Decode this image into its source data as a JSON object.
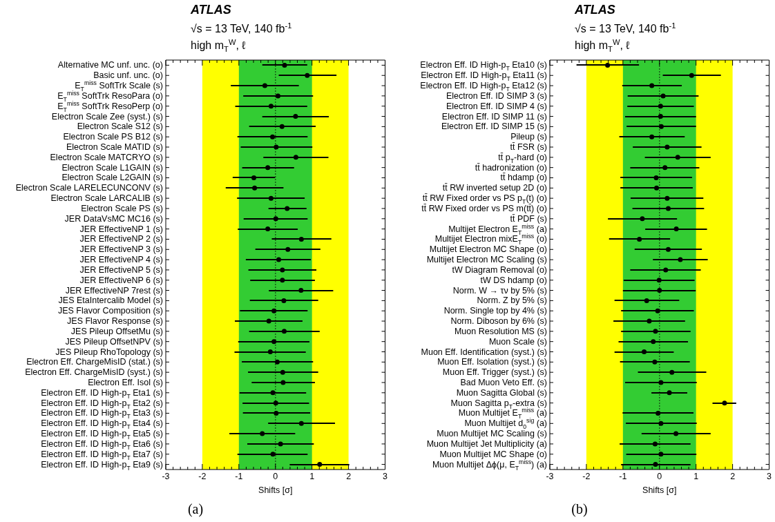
{
  "chart_data": [
    {
      "type": "scatter",
      "orientation": "horizontal",
      "title": "ATLAS",
      "subtitle": "√s = 13 TeV, 140 fb$^{-1}$\nhigh m$_{T}$$^{W}$, ℓ",
      "xlabel": "Shifts [σ]",
      "annotations": [
        "(a)"
      ],
      "categories": [
        "Alternative MC unf. unc. (o)",
        "Basic unf. unc. (o)",
        "E$_{T}$$^{miss}$ SoftTrk Scale (s)",
        "E$_{T}$$^{miss}$ SoftTrk ResoPara (o)",
        "E$_{T}$$^{miss}$ SoftTrk ResoPerp (o)",
        "Electron Scale Zee (syst.)  (s)",
        "Electron Scale S12 (s)",
        "Electron Scale PS B12 (s)",
        "Electron Scale MATID (s)",
        "Electron Scale MATCRYO (s)",
        "Electron Scale L1GAIN (s)",
        "Electron Scale L2GAIN (s)",
        "Electron Scale LARELECUNCONV (s)",
        "Electron Scale LARCALIB (s)",
        "Electron Scale PS (s)",
        "JER DataVsMC MC16 (s)",
        "JER EffectiveNP 1 (s)",
        "JER EffectiveNP 2 (s)",
        "JER EffectiveNP 3 (s)",
        "JER EffectiveNP 4 (s)",
        "JER EffectiveNP 5 (s)",
        "JER EffectiveNP 6 (s)",
        "JER EffectiveNP 7rest (s)",
        "JES EtaIntercalib Model (s)",
        "JES Flavor Composition (s)",
        "JES Flavor Response (s)",
        "JES Pileup OffsetMu (s)",
        "JES Pileup OffsetNPV (s)",
        "JES Pileup RhoTopology (s)",
        "Electron Eff. ChargeMisID (stat.) (s)",
        "Electron Eff. ChargeMisID (syst.) (s)",
        "Electron Eff. Isol (s)",
        "Electron Eff. ID High-p$_{T}$ Eta1 (s)",
        "Electron Eff. ID High-p$_{T}$ Eta2 (s)",
        "Electron Eff. ID High-p$_{T}$ Eta3 (s)",
        "Electron Eff. ID High-p$_{T}$ Eta4 (s)",
        "Electron Eff. ID High-p$_{T}$ Eta5 (s)",
        "Electron Eff. ID High-p$_{T}$ Eta6 (s)",
        "Electron Eff. ID High-p$_{T}$ Eta7 (s)",
        "Electron Eff. ID High-p$_{T}$ Eta9 (s)"
      ],
      "series": [
        {
          "color": "#000000",
          "values": [
            0.25,
            0.87,
            -0.29,
            0.07,
            -0.12,
            0.55,
            0.18,
            -0.08,
            0.02,
            0.56,
            -0.21,
            -0.59,
            -0.57,
            -0.12,
            0.32,
            0.01,
            -0.21,
            0.71,
            0.34,
            0.09,
            0.19,
            0.19,
            0.7,
            0.23,
            -0.04,
            -0.18,
            0.24,
            -0.04,
            -0.14,
            0.05,
            0.2,
            0.21,
            -0.07,
            0.01,
            0.02,
            0.71,
            -0.36,
            0.14,
            -0.07,
            1.21
          ],
          "errors": [
            [
              -0.36,
              0.87
            ],
            [
              0.09,
              1.67
            ],
            [
              -1.22,
              0.64
            ],
            [
              -0.88,
              1.03
            ],
            [
              -1.1,
              0.87
            ],
            [
              -0.36,
              1.46
            ],
            [
              -0.72,
              1.1
            ],
            [
              -1.04,
              0.88
            ],
            [
              -0.95,
              1.01
            ],
            [
              -0.33,
              1.45
            ],
            [
              -0.91,
              0.51
            ],
            [
              -1.17,
              -0.01
            ],
            [
              -1.36,
              0.22
            ],
            [
              -1.05,
              0.8
            ],
            [
              -0.19,
              0.85
            ],
            [
              -0.87,
              0.88
            ],
            [
              -1.03,
              0.61
            ],
            [
              -0.1,
              1.53
            ],
            [
              -0.55,
              1.23
            ],
            [
              -0.81,
              0.97
            ],
            [
              -0.74,
              1.12
            ],
            [
              -0.69,
              1.08
            ],
            [
              -0.18,
              1.58
            ],
            [
              -0.7,
              1.17
            ],
            [
              -0.97,
              0.88
            ],
            [
              -1.11,
              0.74
            ],
            [
              -0.72,
              1.21
            ],
            [
              -1.02,
              0.93
            ],
            [
              -1.12,
              0.83
            ],
            [
              -0.92,
              1.03
            ],
            [
              -0.75,
              1.17
            ],
            [
              -0.65,
              1.08
            ],
            [
              -0.98,
              0.84
            ],
            [
              -0.9,
              0.92
            ],
            [
              -0.89,
              0.95
            ],
            [
              -0.2,
              1.63
            ],
            [
              -1.26,
              0.54
            ],
            [
              -0.77,
              1.05
            ],
            [
              -1.04,
              0.88
            ],
            [
              0.39,
              2.02
            ]
          ]
        }
      ],
      "xlim": [
        -3,
        3
      ],
      "xticks": [
        -3,
        -2,
        -1,
        0,
        1,
        2,
        3
      ],
      "marker": "circle",
      "bands": [
        {
          "axis": "x",
          "from": -2,
          "to": 2,
          "color": "#ffff00"
        },
        {
          "axis": "x",
          "from": -1,
          "to": 1,
          "color": "#33cc33"
        }
      ],
      "ref_lines": [
        {
          "axis": "x",
          "value": 0,
          "color": "#1a5c1a",
          "line_style": "dotted"
        }
      ]
    },
    {
      "type": "scatter",
      "orientation": "horizontal",
      "title": "ATLAS",
      "subtitle": "√s = 13 TeV, 140 fb$^{-1}$\nhigh m$_{T}$$^{W}$, ℓ",
      "xlabel": "Shifts [σ]",
      "annotations": [
        "(b)"
      ],
      "categories": [
        "Electron Eff. ID High-p$_{T}$ Eta10 (s)",
        "Electron Eff. ID High-p$_{T}$ Eta11 (s)",
        "Electron Eff. ID High-p$_{T}$ Eta12 (s)",
        "Electron Eff. ID SIMP 3 (s)",
        "Electron Eff. ID SIMP 4 (s)",
        "Electron Eff. ID SIMP 11 (s)",
        "Electron Eff. ID SIMP 15 (s)",
        "Pileup (s)",
        "tt̄ FSR (s)",
        "tt̄ p$_{T}$-hard (o)",
        "tt̄ hadronization (o)",
        "tt̄ hdamp (o)",
        "tt̄ RW inverted setup 2D (o)",
        "tt̄ RW Fixed order vs PS p$_{T}$(t) (o)",
        "tt̄ RW Fixed order vs PS m(tt̄) (o)",
        "tt̄ PDF (s)",
        "Multijet Electron E$_{T}$$^{miss}$ (a)",
        "Multijet Electron mixE$_{T}$$^{miss}$ (o)",
        "Multijet Electron MC Shape (o)",
        "Multijet Electron MC Scaling (s)",
        "tW Diagram Removal (o)",
        "tW DS hdamp (o)",
        "Norm. W → τν by 5% (s)",
        "Norm. Z by 5% (s)",
        "Norm. Single top  by 4%  (s)",
        "Norm. Diboson  by 6% (s)",
        "Muon Resolution MS (s)",
        "Muon Scale (s)",
        "Muon Eff. Identification (syst.) (s)",
        "Muon Eff. Isolation (syst.) (s)",
        "Muon Eff. Trigger (syst.) (s)",
        "Bad Muon Veto Eff. (s)",
        "Muon Sagitta Global (s)",
        "Muon Sagitta p$_{T}$-extra (s)",
        "Muon Multijet E$_{T}$$^{miss}$ (a)",
        "Muon Multijet d$_{0}$$^{sig}$ (a)",
        "Muon Multijet MC Scaling (s)",
        "Muon Multijet Jet Multiplicity (a)",
        "Muon Multijet MC Shape (o)",
        "Muon Multijet Δϕ(μ, E$_{T}$$^{miss}$) (a)"
      ],
      "series": [
        {
          "color": "#000000",
          "values": [
            -1.42,
            0.88,
            -0.21,
            0.1,
            0.03,
            0.03,
            0.05,
            -0.21,
            0.21,
            0.5,
            0.15,
            -0.09,
            -0.08,
            0.21,
            0.24,
            -0.47,
            0.46,
            -0.55,
            0.24,
            0.57,
            0.17,
            -0.01,
            0.0,
            -0.35,
            -0.05,
            -0.28,
            -0.11,
            -0.17,
            -0.42,
            -0.13,
            0.34,
            0.04,
            0.27,
            1.78,
            -0.04,
            0.04,
            0.45,
            -0.12,
            0.04,
            -0.11
          ],
          "errors": [
            [
              -2.27,
              -0.56
            ],
            [
              0.09,
              1.68
            ],
            [
              -1.02,
              0.61
            ],
            [
              -0.87,
              1.07
            ],
            [
              -0.88,
              0.94
            ],
            [
              -0.94,
              1.0
            ],
            [
              -0.9,
              1.0
            ],
            [
              -1.1,
              0.69
            ],
            [
              -0.73,
              1.15
            ],
            [
              -0.4,
              1.4
            ],
            [
              -0.8,
              1.09
            ],
            [
              -1.07,
              0.89
            ],
            [
              -1.07,
              0.91
            ],
            [
              -0.79,
              1.2
            ],
            [
              -0.74,
              1.22
            ],
            [
              -1.41,
              0.48
            ],
            [
              -0.39,
              1.3
            ],
            [
              -1.38,
              0.29
            ],
            [
              -0.68,
              1.16
            ],
            [
              -0.18,
              1.32
            ],
            [
              -0.8,
              1.13
            ],
            [
              -0.98,
              0.96
            ],
            [
              -1.0,
              0.99
            ],
            [
              -1.23,
              0.54
            ],
            [
              -1.05,
              0.94
            ],
            [
              -1.26,
              0.7
            ],
            [
              -1.05,
              0.85
            ],
            [
              -1.12,
              0.78
            ],
            [
              -1.23,
              0.39
            ],
            [
              -1.08,
              0.83
            ],
            [
              -0.59,
              1.28
            ],
            [
              -0.94,
              1.02
            ],
            [
              -0.22,
              0.76
            ],
            [
              1.45,
              2.1
            ],
            [
              -1.01,
              0.93
            ],
            [
              -0.92,
              1.02
            ],
            [
              -0.49,
              1.4
            ],
            [
              -1.09,
              0.85
            ],
            [
              -0.91,
              1.01
            ],
            [
              -1.05,
              0.85
            ]
          ]
        }
      ],
      "xlim": [
        -3,
        3
      ],
      "xticks": [
        -3,
        -2,
        -1,
        0,
        1,
        2,
        3
      ],
      "marker": "circle",
      "bands": [
        {
          "axis": "x",
          "from": -2,
          "to": 2,
          "color": "#ffff00"
        },
        {
          "axis": "x",
          "from": -1,
          "to": 1,
          "color": "#33cc33"
        }
      ],
      "ref_lines": [
        {
          "axis": "x",
          "value": 0,
          "color": "#1a5c1a",
          "line_style": "dotted"
        }
      ]
    }
  ]
}
